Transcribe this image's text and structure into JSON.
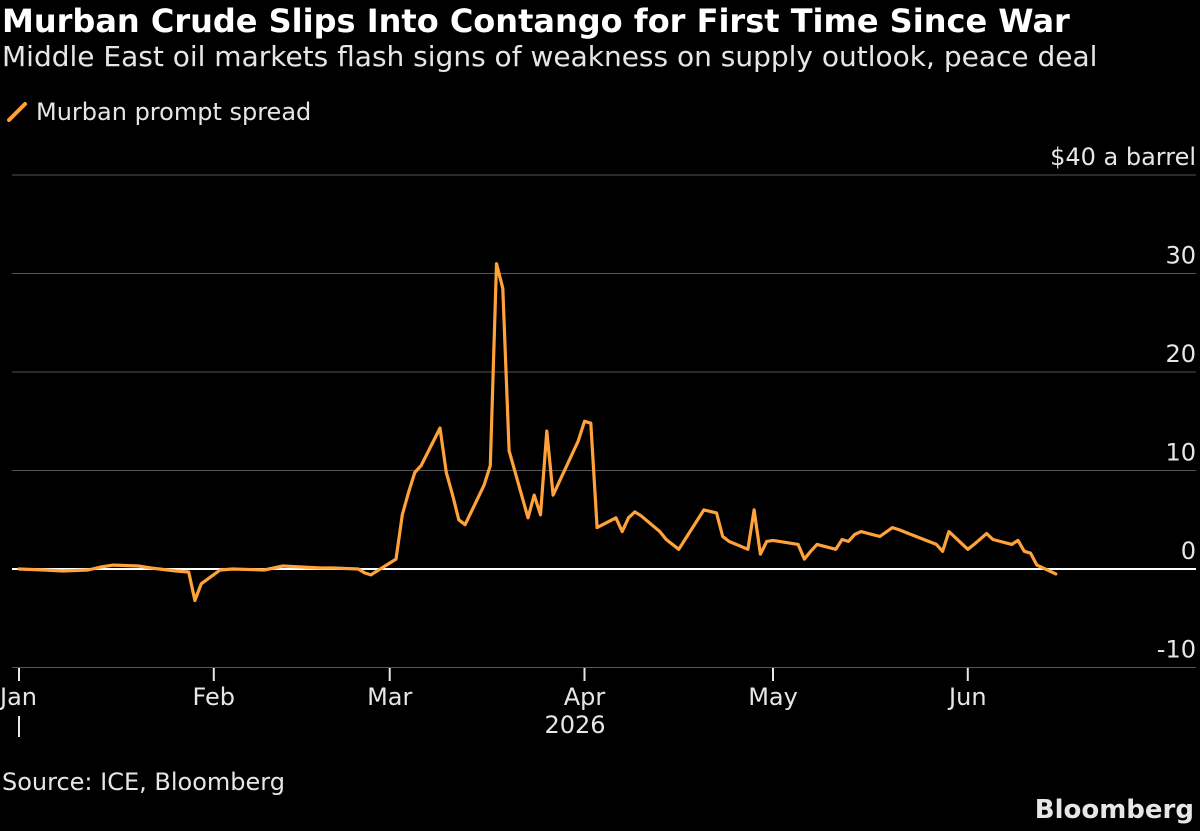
{
  "title": "Murban Crude Slips Into Contango for First Time Since War",
  "subtitle": "Middle East oil markets flash signs of weakness on supply outlook, peace deal",
  "source": "Source: ICE, Bloomberg",
  "brand": "Bloomberg",
  "colors": {
    "background": "#000000",
    "series": "#ffa23a",
    "grid": "#555555",
    "zero_line": "#ffffff"
  },
  "chart_data": {
    "type": "line",
    "series": [
      {
        "name": "Murban prompt spread",
        "x": [
          "2026-01-01",
          "2026-01-05",
          "2026-01-08",
          "2026-01-12",
          "2026-01-14",
          "2026-01-16",
          "2026-01-20",
          "2026-01-22",
          "2026-01-26",
          "2026-01-28",
          "2026-01-29",
          "2026-01-30",
          "2026-02-02",
          "2026-02-04",
          "2026-02-09",
          "2026-02-12",
          "2026-02-18",
          "2026-02-20",
          "2026-02-24",
          "2026-02-25",
          "2026-02-26",
          "2026-03-02",
          "2026-03-03",
          "2026-03-04",
          "2026-03-05",
          "2026-03-06",
          "2026-03-09",
          "2026-03-10",
          "2026-03-11",
          "2026-03-12",
          "2026-03-13",
          "2026-03-16",
          "2026-03-17",
          "2026-03-18",
          "2026-03-19",
          "2026-03-20",
          "2026-03-23",
          "2026-03-24",
          "2026-03-25",
          "2026-03-26",
          "2026-03-27",
          "2026-03-31",
          "2026-04-01",
          "2026-04-02",
          "2026-04-03",
          "2026-04-06",
          "2026-04-07",
          "2026-04-08",
          "2026-04-09",
          "2026-04-10",
          "2026-04-13",
          "2026-04-14",
          "2026-04-16",
          "2026-04-17",
          "2026-04-20",
          "2026-04-22",
          "2026-04-23",
          "2026-04-24",
          "2026-04-27",
          "2026-04-28",
          "2026-04-29",
          "2026-04-30",
          "2026-05-01",
          "2026-05-05",
          "2026-05-06",
          "2026-05-07",
          "2026-05-08",
          "2026-05-11",
          "2026-05-12",
          "2026-05-13",
          "2026-05-14",
          "2026-05-15",
          "2026-05-18",
          "2026-05-20",
          "2026-05-21",
          "2026-05-25",
          "2026-05-27",
          "2026-05-28",
          "2026-05-29",
          "2026-06-01",
          "2026-06-02",
          "2026-06-04",
          "2026-06-05",
          "2026-06-08",
          "2026-06-09",
          "2026-06-10",
          "2026-06-11",
          "2026-06-12",
          "2026-06-15"
        ],
        "y": [
          0,
          -0.1,
          -0.2,
          -0.1,
          0.2,
          0.4,
          0.3,
          0.1,
          -0.2,
          -0.3,
          -3.2,
          -1.5,
          -0.1,
          0,
          -0.1,
          0.3,
          0.1,
          0.1,
          0,
          -0.4,
          -0.6,
          1,
          5.5,
          7.8,
          9.8,
          10.5,
          14.3,
          9.8,
          7.5,
          5,
          4.5,
          8.5,
          10.5,
          31,
          28.5,
          12,
          5.2,
          7.5,
          5.5,
          14,
          7.5,
          13,
          15,
          14.8,
          4.2,
          5.2,
          3.8,
          5.2,
          5.8,
          5.4,
          3.8,
          3,
          2,
          3,
          6,
          5.7,
          3.3,
          2.8,
          2,
          6,
          1.5,
          2.8,
          2.9,
          2.5,
          1,
          1.8,
          2.5,
          2,
          3,
          2.8,
          3.5,
          3.8,
          3.3,
          4.2,
          4,
          3,
          2.5,
          1.8,
          3.8,
          2,
          2.5,
          3.6,
          3,
          2.5,
          2.9,
          1.8,
          1.6,
          0.4,
          -0.5
        ]
      }
    ],
    "yticks": [
      -10,
      0,
      10,
      20,
      30,
      40
    ],
    "ytick_labels": [
      "-10",
      "0",
      "10",
      "20",
      "30",
      "$40 a barrel"
    ],
    "ylim": [
      -10,
      40
    ],
    "xticks": [
      "2026-01-01",
      "2026-02-01",
      "2026-03-01",
      "2026-04-01",
      "2026-05-01",
      "2026-06-01"
    ],
    "xtick_labels": [
      "Jan",
      "Feb",
      "Mar",
      "Apr",
      "May",
      "Jun"
    ],
    "x_year_label": "2026",
    "grid": true,
    "legend_position": "top-left"
  }
}
